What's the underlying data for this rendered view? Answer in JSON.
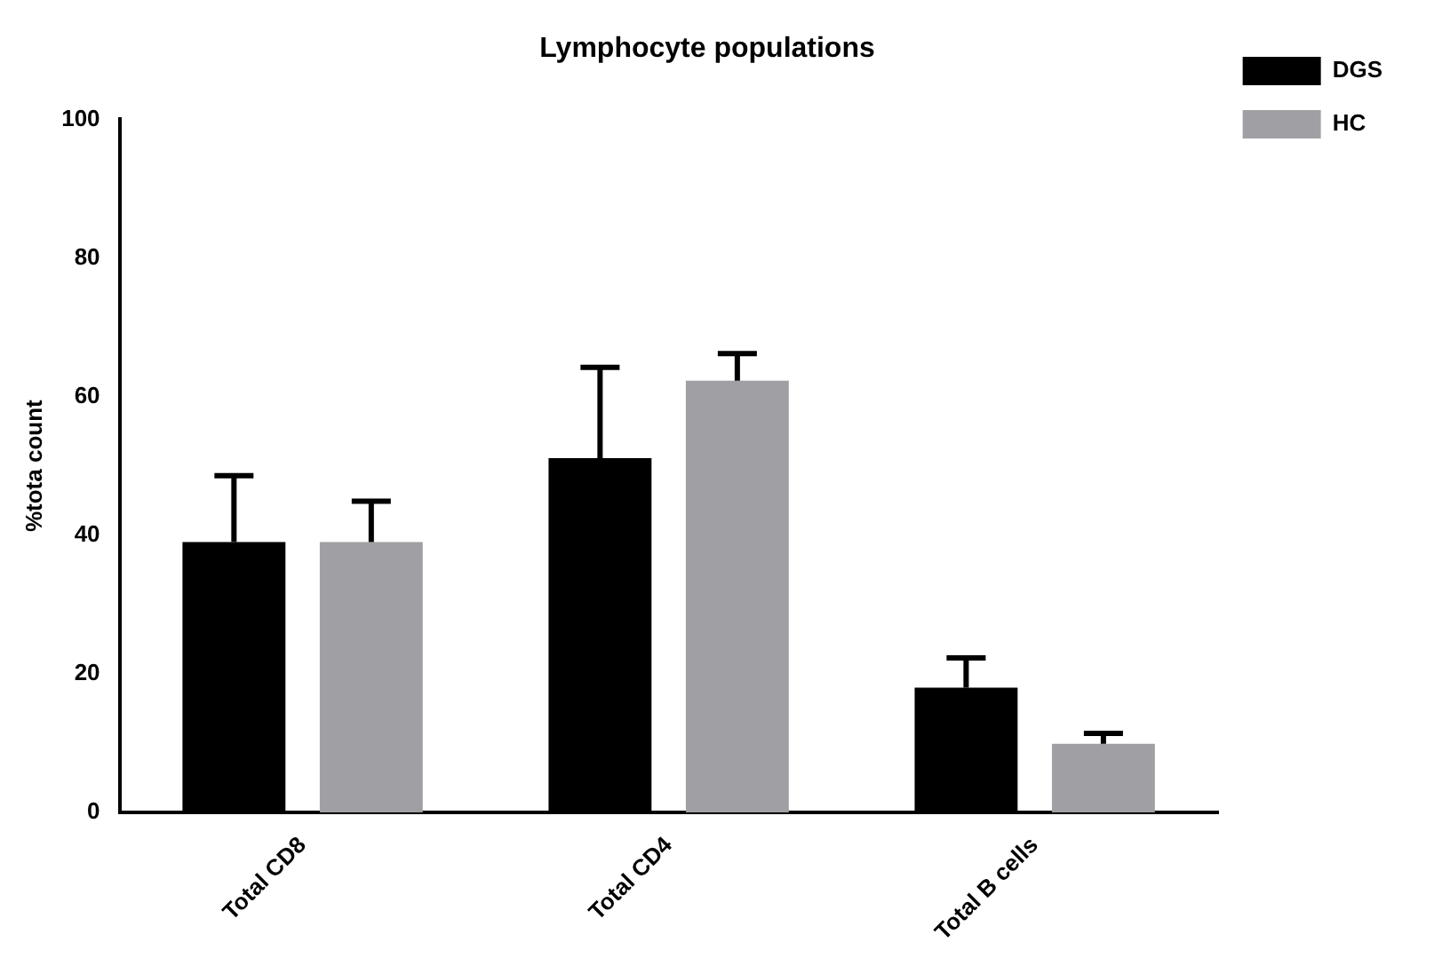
{
  "chart_data": {
    "type": "bar",
    "title": "Lymphocyte populations",
    "ylabel": "%tota count",
    "categories": [
      "Total CD8",
      "Total CD4",
      "Total B cells"
    ],
    "series": [
      {
        "name": "DGS",
        "color": "#000000",
        "values": [
          39,
          51.1,
          18
        ],
        "errors": [
          [
            39,
            48.6
          ],
          [
            51.1,
            64.2
          ],
          [
            18,
            22.3
          ]
        ]
      },
      {
        "name": "HC",
        "color": "#a0a0a4",
        "values": [
          39,
          62.3,
          9.9
        ],
        "errors": [
          [
            39,
            44.9
          ],
          [
            62.3,
            66.2
          ],
          [
            9.9,
            11.4
          ]
        ]
      }
    ],
    "ylim": [
      0,
      100
    ],
    "yticks": [
      0,
      20,
      40,
      60,
      80,
      100
    ],
    "grid": false,
    "legend": "top right"
  }
}
